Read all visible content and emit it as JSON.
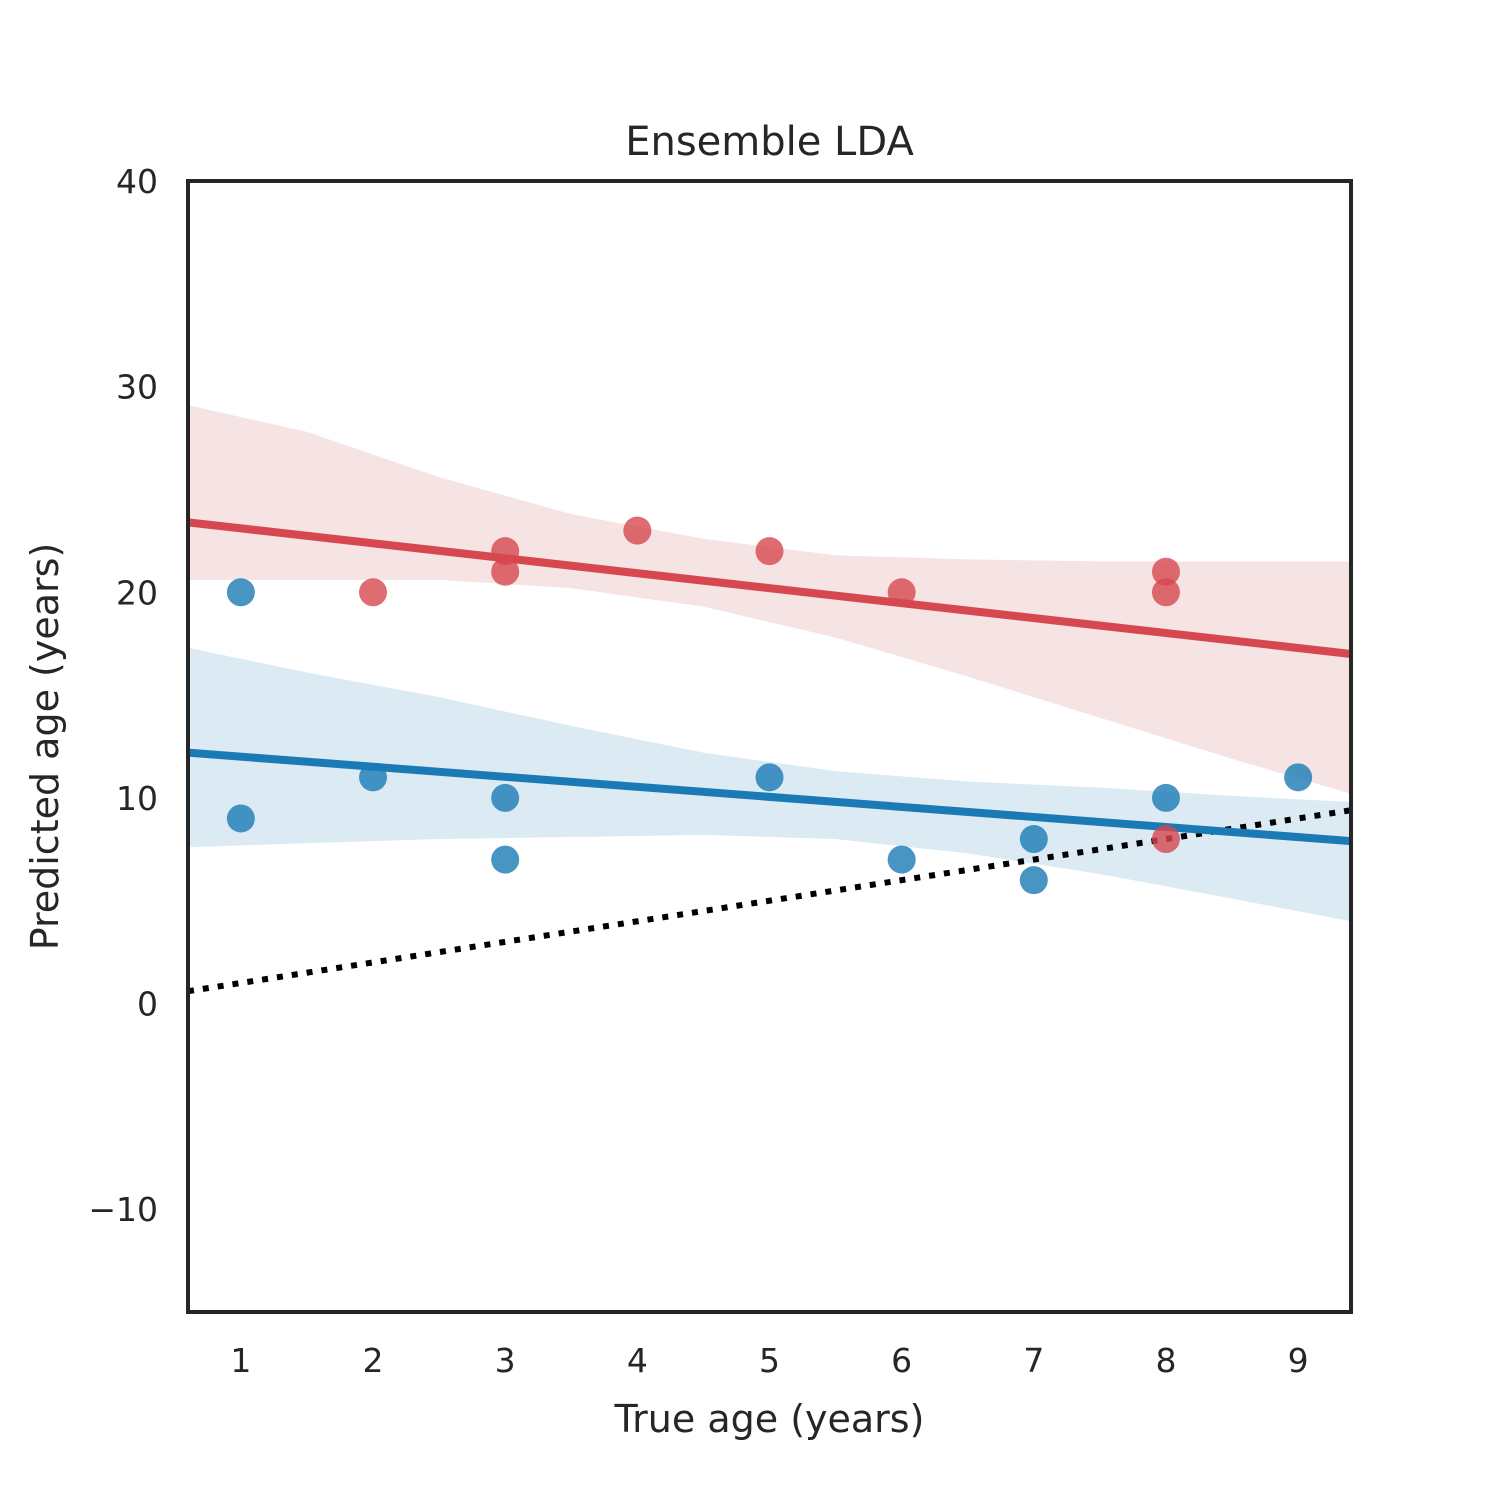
{
  "chart_data": {
    "type": "scatter",
    "title": "Ensemble LDA",
    "xlabel": "True age (years)",
    "ylabel": "Predicted age (years)",
    "xlim": [
      0.6,
      9.4
    ],
    "ylim": [
      -15,
      40
    ],
    "xticks": [
      1,
      2,
      3,
      4,
      5,
      6,
      7,
      8,
      9
    ],
    "xtick_labels": [
      "1",
      "2",
      "3",
      "4",
      "5",
      "6",
      "7",
      "8",
      "9"
    ],
    "yticks": [
      -10,
      0,
      10,
      20,
      30,
      40
    ],
    "ytick_labels": [
      "−10",
      "0",
      "10",
      "20",
      "30",
      "40"
    ],
    "grid": false,
    "series": [
      {
        "color": "#d6474f",
        "band_color": "#f6e3e4",
        "points": [
          [
            2,
            20
          ],
          [
            3,
            22
          ],
          [
            3,
            21
          ],
          [
            4,
            23
          ],
          [
            5,
            22
          ],
          [
            6,
            20
          ],
          [
            8,
            21
          ],
          [
            8,
            20
          ],
          [
            8,
            8
          ]
        ],
        "fit_line": [
          [
            0.6,
            23.4
          ],
          [
            9.4,
            17.0
          ]
        ],
        "confidence_band": {
          "x": [
            0.6,
            1.5,
            2.5,
            3.5,
            4.5,
            5.5,
            6.5,
            7.5,
            8.5,
            9.4
          ],
          "upper": [
            29.1,
            27.8,
            25.6,
            23.8,
            22.6,
            21.8,
            21.6,
            21.5,
            21.5,
            21.5
          ],
          "lower": [
            20.6,
            20.6,
            20.6,
            20.2,
            19.3,
            17.8,
            15.9,
            13.9,
            11.9,
            10.2
          ]
        }
      },
      {
        "color": "#1a7ab5",
        "band_color": "#dbeaf3",
        "points": [
          [
            1,
            20
          ],
          [
            1,
            9
          ],
          [
            2,
            11
          ],
          [
            3,
            10
          ],
          [
            3,
            7
          ],
          [
            5,
            11
          ],
          [
            6,
            7
          ],
          [
            7,
            8
          ],
          [
            7,
            6
          ],
          [
            8,
            10
          ],
          [
            9,
            11
          ]
        ],
        "fit_line": [
          [
            0.6,
            12.2
          ],
          [
            9.4,
            7.9
          ]
        ],
        "confidence_band": {
          "x": [
            0.6,
            1.5,
            2.5,
            3.5,
            4.5,
            5.5,
            6.5,
            7.5,
            8.5,
            9.4
          ],
          "upper": [
            17.3,
            16.1,
            14.9,
            13.5,
            12.2,
            11.3,
            10.8,
            10.5,
            10.1,
            9.8
          ],
          "lower": [
            7.6,
            7.8,
            8.0,
            8.1,
            8.2,
            8.0,
            7.3,
            6.3,
            5.1,
            4.0
          ]
        }
      }
    ],
    "reference_line": {
      "style": "dotted",
      "color": "#000000",
      "points": [
        [
          0.6,
          0.6
        ],
        [
          9.4,
          9.4
        ]
      ]
    }
  }
}
